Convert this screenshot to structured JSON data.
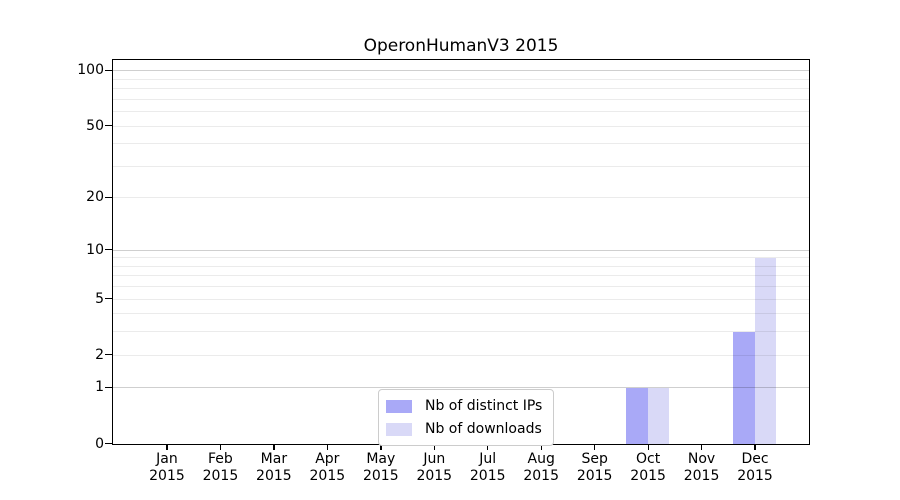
{
  "chart_data": {
    "type": "bar",
    "title": "OperonHumanV3 2015",
    "categories": [
      "Jan",
      "Feb",
      "Mar",
      "Apr",
      "May",
      "Jun",
      "Jul",
      "Aug",
      "Sep",
      "Oct",
      "Nov",
      "Dec"
    ],
    "x_tick_year": "2015",
    "series": [
      {
        "name": "Nb of distinct IPs",
        "color": "#a9a9f7",
        "values": [
          0,
          0,
          0,
          0,
          0,
          0,
          0,
          0,
          0,
          1,
          0,
          3
        ]
      },
      {
        "name": "Nb of downloads",
        "color": "#d9d9f7",
        "values": [
          0,
          0,
          0,
          0,
          0,
          0,
          0,
          0,
          0,
          1,
          0,
          9
        ]
      }
    ],
    "y_scale": "log1p",
    "ylim": [
      0,
      113
    ],
    "y_tick_labels": [
      0,
      1,
      2,
      5,
      10,
      20,
      50,
      100
    ],
    "y_gridlines_major": [
      1,
      10,
      100
    ],
    "y_gridlines_minor": [
      2,
      3,
      4,
      5,
      6,
      7,
      8,
      9,
      20,
      30,
      40,
      50,
      60,
      70,
      80,
      90
    ],
    "grid": "horizontal",
    "legend_position": "lower center",
    "colors": {
      "grid_major": "rgba(0,0,0,0.19)",
      "grid_minor": "rgba(0,0,0,0.08)",
      "spine": "#000000",
      "text": "#000000",
      "legend_border": "#cccccc",
      "background": "#ffffff"
    }
  }
}
